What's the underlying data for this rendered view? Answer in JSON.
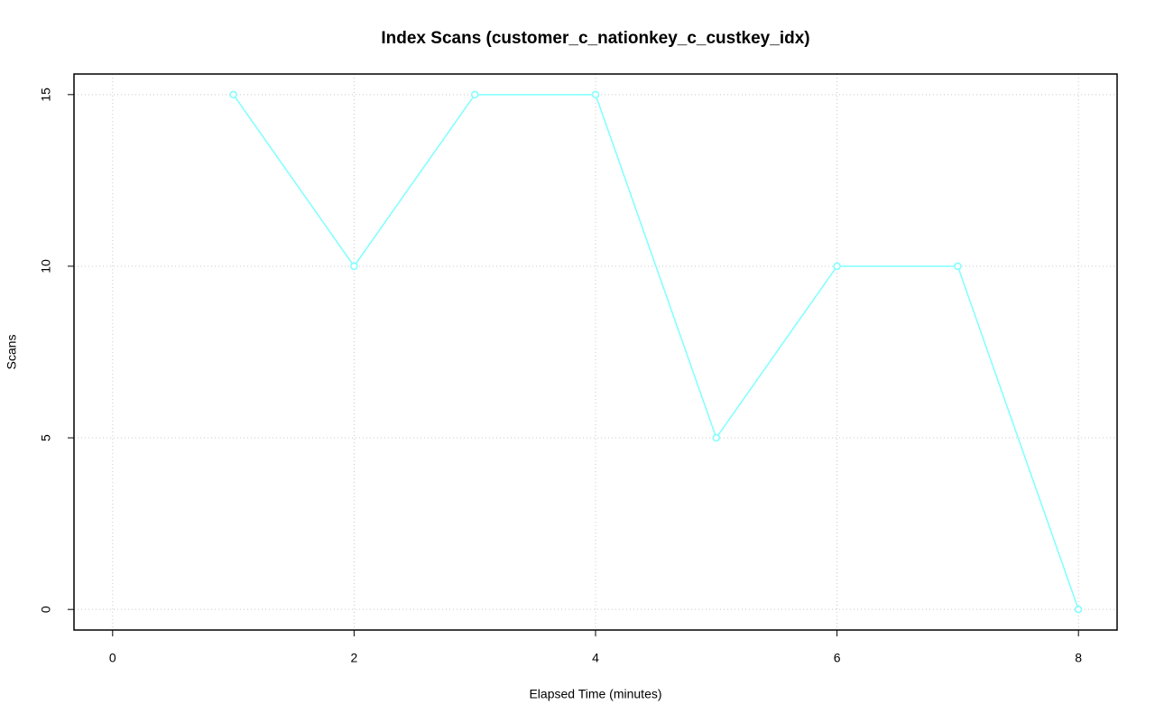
{
  "chart_data": {
    "type": "line",
    "title": "Index Scans (customer_c_nationkey_c_custkey_idx)",
    "x_label": "Elapsed Time (minutes)",
    "y_label": "Scans",
    "x": [
      1,
      2,
      3,
      4,
      5,
      6,
      7,
      8
    ],
    "series": [
      {
        "name": "customer_c_nationkey_c_custkey_idx",
        "color": "#7fffff",
        "values": [
          15,
          10,
          15,
          15,
          5,
          10,
          10,
          0
        ]
      }
    ],
    "xlim": [
      -0.32,
      8.32
    ],
    "ylim": [
      -0.6,
      15.6
    ],
    "xticks": [
      0,
      2,
      4,
      6,
      8
    ],
    "yticks": [
      0,
      5,
      10,
      15
    ],
    "grid": true
  }
}
